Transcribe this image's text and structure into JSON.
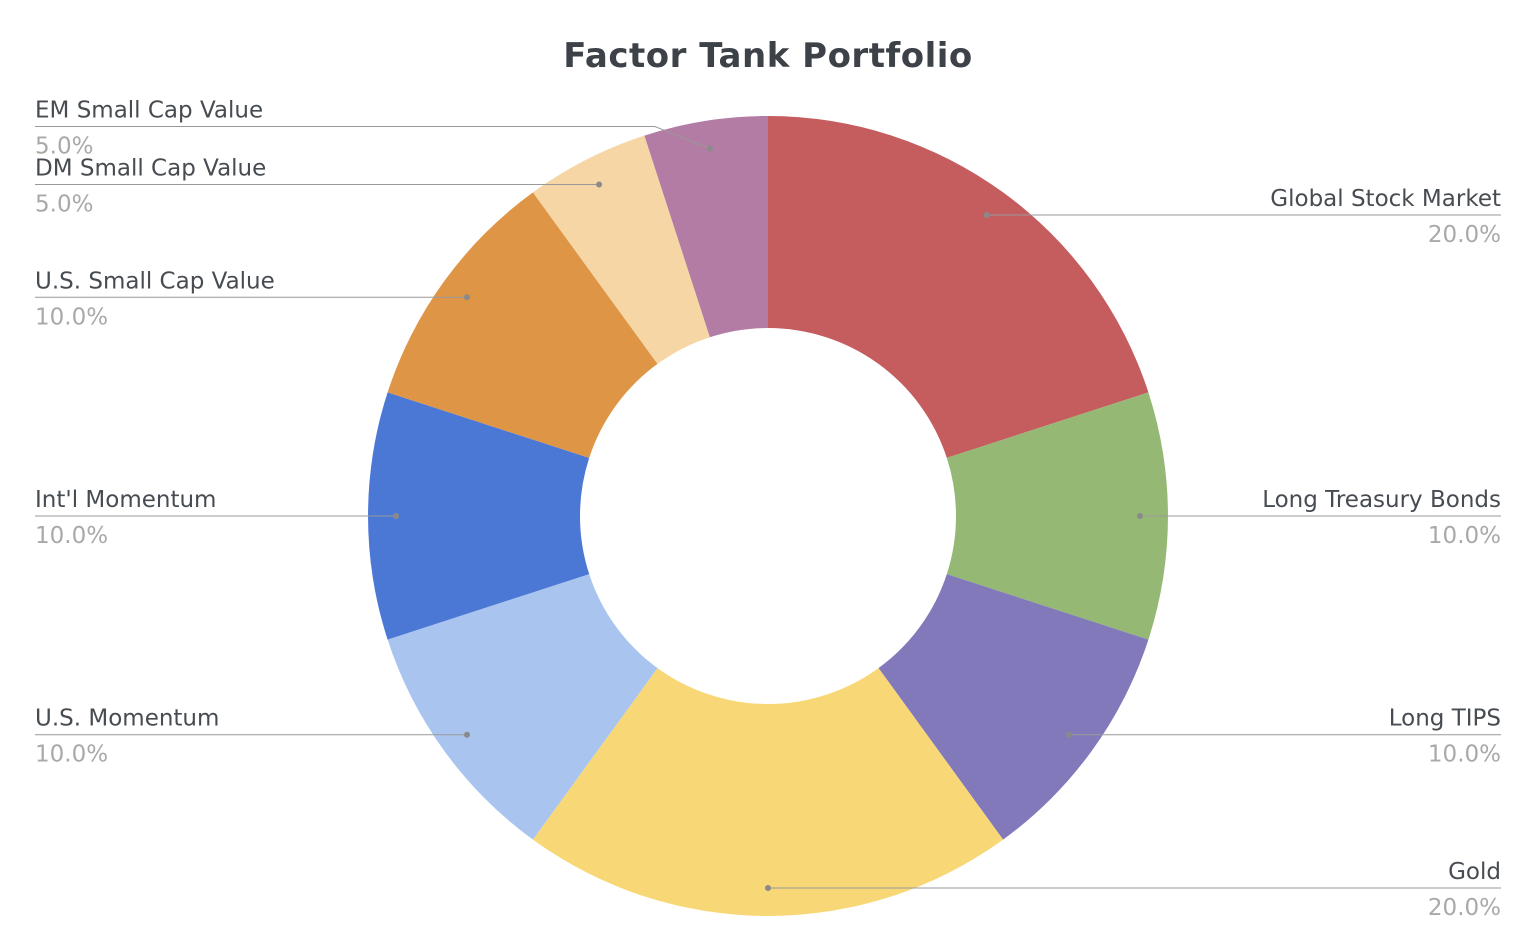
{
  "chart_data": {
    "type": "pie",
    "title": "Factor Tank Portfolio",
    "hole": 0.47,
    "direction": "clockwise",
    "start_angle": "top",
    "legend": "none",
    "label_position": "outside-with-leader-lines",
    "labels": [
      "Global Stock Market",
      "Long Treasury Bonds",
      "Long TIPS",
      "Gold",
      "U.S. Momentum",
      "Int'l Momentum",
      "U.S. Small Cap Value",
      "DM Small Cap Value",
      "EM Small Cap Value"
    ],
    "values": [
      20.0,
      10.0,
      10.0,
      20.0,
      10.0,
      10.0,
      10.0,
      5.0,
      5.0
    ],
    "percent_labels": [
      "20.0%",
      "10.0%",
      "10.0%",
      "20.0%",
      "10.0%",
      "10.0%",
      "10.0%",
      "5.0%",
      "5.0%"
    ],
    "colors": [
      "#c55d5e",
      "#95b975",
      "#8279ba",
      "#f8d876",
      "#a9c5ef",
      "#4c78d5",
      "#de9546",
      "#f6d6a5",
      "#b27ca5"
    ]
  },
  "styles": {
    "title_color": "#3c4248",
    "label_color": "#474c52",
    "percent_color": "#a9a9a9",
    "line_color": "#999999",
    "dot_color": "#8a8a8a",
    "background": "#ffffff"
  }
}
